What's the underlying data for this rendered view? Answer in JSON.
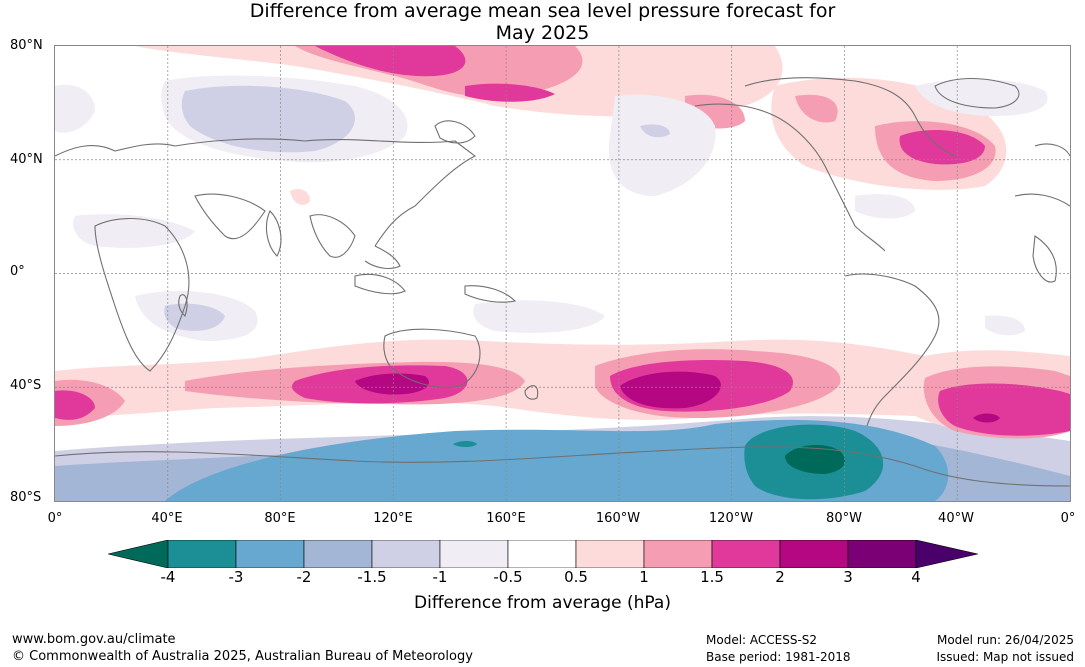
{
  "title_line1": "Difference from average mean sea level pressure forecast for",
  "title_line2": "May 2025",
  "lat_labels": [
    "80°N",
    "40°N",
    "0°",
    "40°S",
    "80°S"
  ],
  "lon_labels": [
    "0°",
    "40°E",
    "80°E",
    "120°E",
    "160°E",
    "160°W",
    "120°W",
    "80°W",
    "40°W",
    "0°"
  ],
  "colorbar": {
    "ticks": [
      "-4",
      "-3",
      "-2",
      "-1.5",
      "-1",
      "-0.5",
      "0.5",
      "1",
      "1.5",
      "2",
      "3",
      "4"
    ],
    "label": "Difference from average (hPa)",
    "colors": {
      "below_-4": "#006a5a",
      "-4_-3": "#1b8f95",
      "-3_-2": "#66a8cf",
      "-2_-1.5": "#a4b6d6",
      "-1.5_-1": "#cfd0e5",
      "-1_-0.5": "#f0edf4",
      "-0.5_0.5": "#ffffff",
      "0.5_1": "#fddbda",
      "1_1.5": "#f59db2",
      "1.5_2": "#e0399b",
      "2_3": "#b40781",
      "3_4": "#7c0075",
      "above_4": "#4a006a"
    }
  },
  "footer": {
    "website": "www.bom.gov.au/climate",
    "copyright": "© Commonwealth of Australia 2025, Australian Bureau of Meteorology",
    "model": "Model: ACCESS-S2",
    "base_period": "Base period: 1981-2018",
    "model_run": "Model run: 26/04/2025",
    "issued": "Issued: Map not issued"
  }
}
